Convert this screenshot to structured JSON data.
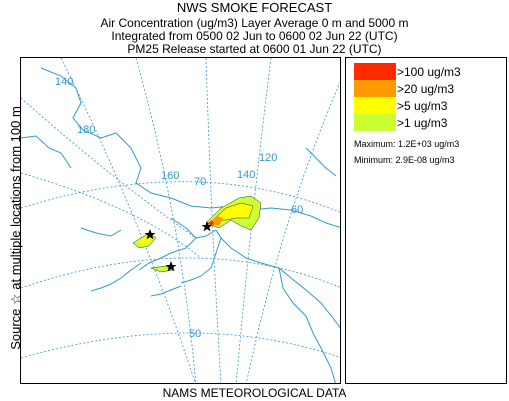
{
  "header": {
    "line1": "NWS SMOKE FORECAST",
    "line2": "Air Concentration (ug/m3) Layer Average    0 m and  5000 m",
    "line3": "Integrated from 0500 02 Jun to 0600 02 Jun 22 (UTC)",
    "line4": "PM25 Release started at 0600 01 Jun 22 (UTC)"
  },
  "side_label": "Source ☆  at multiple locations     from   100 m",
  "footer": "NAMS METEOROLOGICAL DATA",
  "legend": {
    "items": [
      {
        "label": ">100 ug/m3",
        "color": "#ff2a00"
      },
      {
        "label": ">20 ug/m3",
        "color": "#ff9900"
      },
      {
        "label": ">5 ug/m3",
        "color": "#ffff00"
      },
      {
        "label": ">1 ug/m3",
        "color": "#ccff33"
      }
    ],
    "maximum": "Maximum: 1.2E+03 ug/m3",
    "minimum": "Minimum: 2.9E-08 ug/m3"
  },
  "map": {
    "grid_labels": [
      "140",
      "180",
      "160",
      "70",
      "140",
      "120",
      "60",
      "50"
    ],
    "coast_color": "#3399cc",
    "grid_color": "#3399cc"
  }
}
